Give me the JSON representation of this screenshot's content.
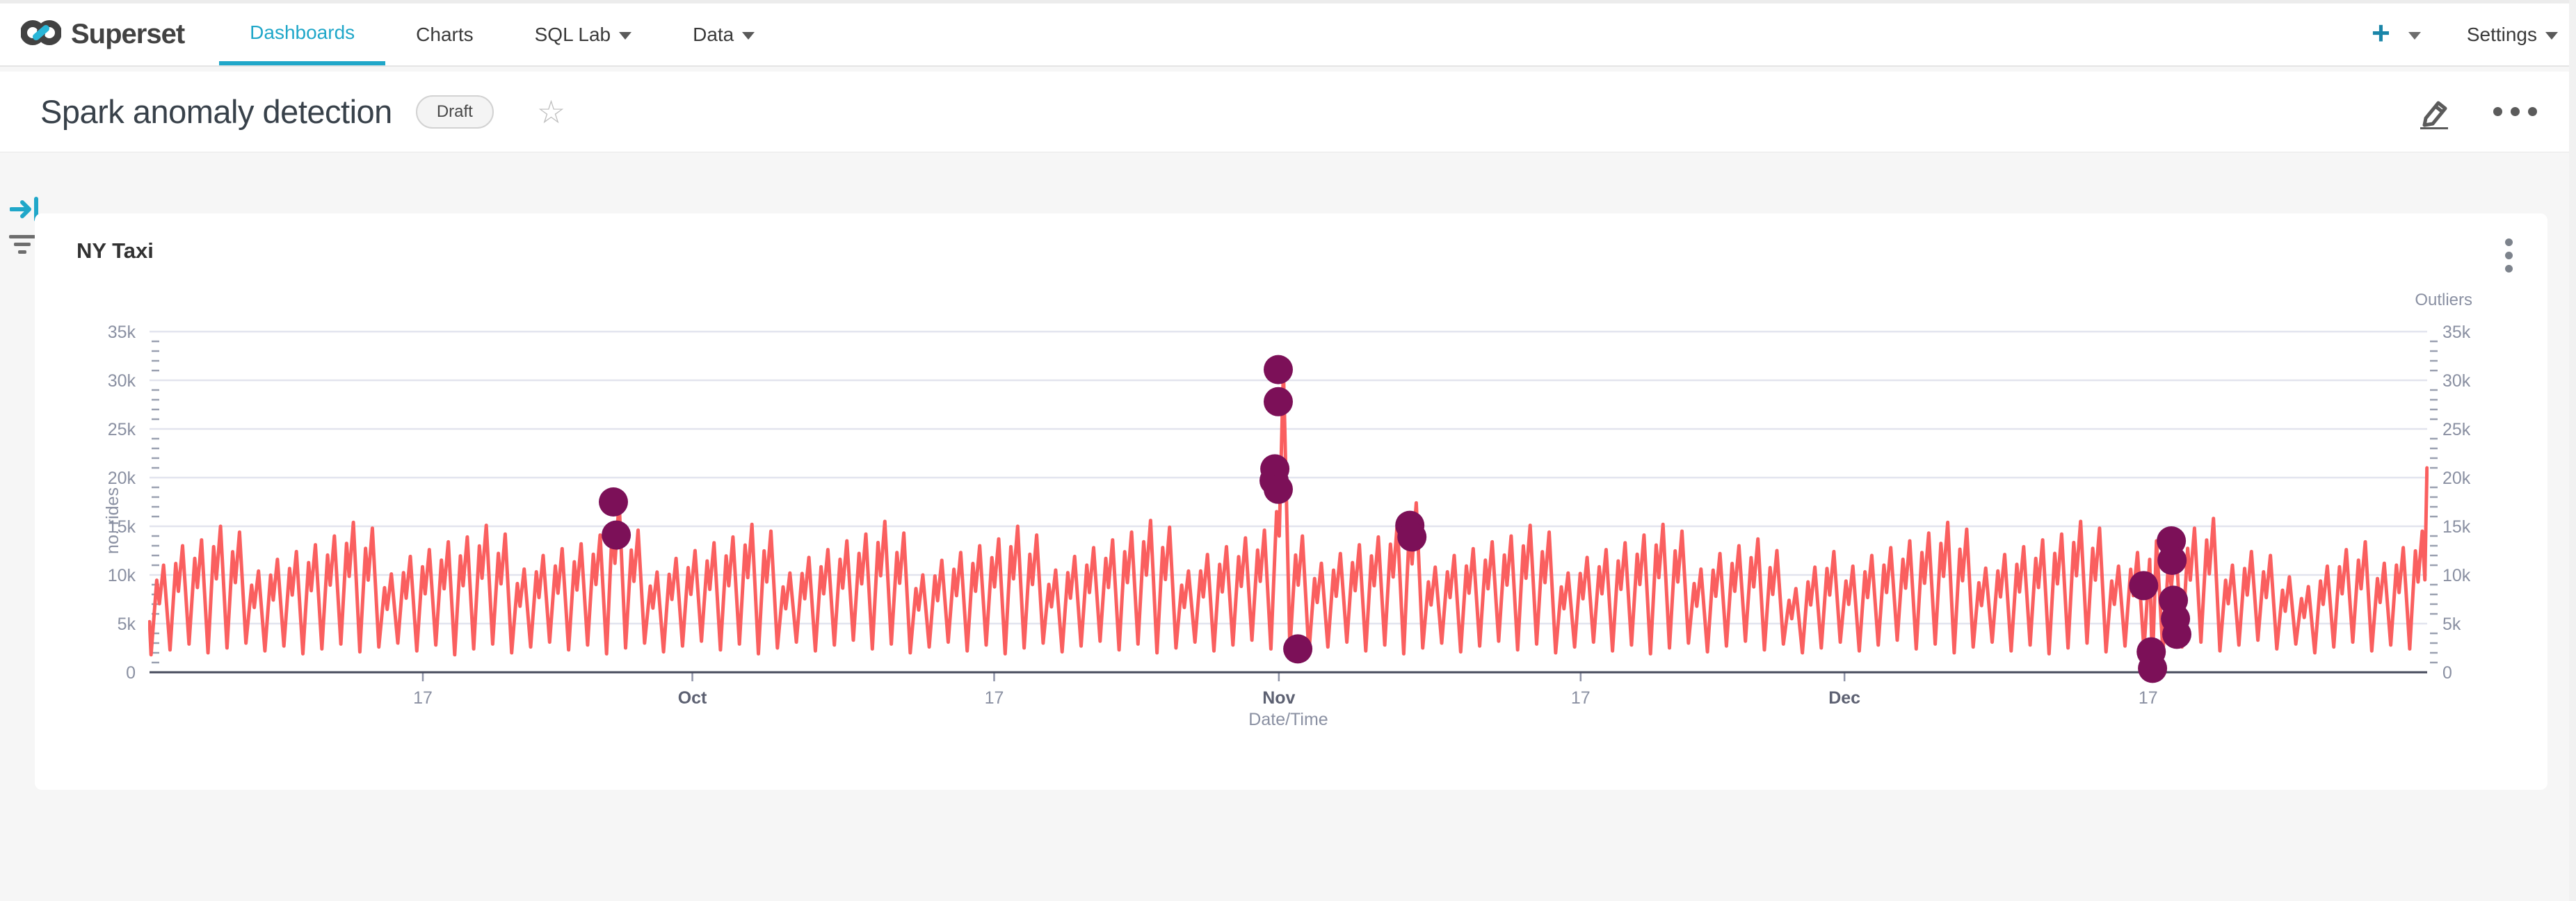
{
  "nav": {
    "brand": "Superset",
    "items": [
      {
        "label": "Dashboards",
        "active": true
      },
      {
        "label": "Charts",
        "active": false
      },
      {
        "label": "SQL Lab",
        "active": false,
        "caret": true
      },
      {
        "label": "Data",
        "active": false,
        "caret": true
      }
    ],
    "plus_label": "+",
    "settings_label": "Settings"
  },
  "header": {
    "title": "Spark anomaly detection",
    "status_badge": "Draft",
    "favorite_icon": "star-outline",
    "actions": [
      "edit",
      "more"
    ]
  },
  "chart_card": {
    "title": "NY Taxi",
    "menu_icon": "kebab-vertical"
  },
  "colors": {
    "accent": "#20a7c9",
    "line": "#fa5f5f",
    "outlier": "#7c1058",
    "grid": "#e2e4ee",
    "axis": "#474b5c",
    "tick_label": "#8a90a2",
    "month_label": "#5d6172"
  },
  "chart_data": {
    "type": "line",
    "title": "NY Taxi",
    "xlabel": "Date/Time",
    "ylabel_left": "no. rides",
    "ylabel_right": "Outliers",
    "value_unit": "thousands of rides",
    "ylim_k": [
      0,
      35
    ],
    "ytick_step_k": 5,
    "ytick_labels": [
      "0",
      "5k",
      "10k",
      "15k",
      "20k",
      "25k",
      "30k",
      "35k"
    ],
    "x_domain_days": [
      0,
      120
    ],
    "xticks": [
      {
        "day": 14.4,
        "label": "17",
        "strong": false
      },
      {
        "day": 28.6,
        "label": "Oct",
        "strong": true
      },
      {
        "day": 44.5,
        "label": "17",
        "strong": false
      },
      {
        "day": 59.5,
        "label": "Nov",
        "strong": true
      },
      {
        "day": 75.4,
        "label": "17",
        "strong": false
      },
      {
        "day": 89.3,
        "label": "Dec",
        "strong": true
      },
      {
        "day": 105.3,
        "label": "17",
        "strong": false
      }
    ],
    "grid": true,
    "legend_position": "none",
    "series": [
      {
        "name": "rides",
        "type": "line",
        "note": "each day entry is [peak_k, trough_k, optional mid_rise_k, optional midday_dip_k]",
        "lead_point": [
          0.0,
          5.2
        ],
        "days": [
          [
            11.0,
            1.8
          ],
          [
            13.0,
            2.3
          ],
          [
            13.6,
            2.9
          ],
          [
            15.0,
            2.0
          ],
          [
            14.4,
            2.5
          ],
          [
            10.4,
            3.0
          ],
          [
            11.6,
            2.2
          ],
          [
            12.4,
            2.7
          ],
          [
            13.1,
            1.9
          ],
          [
            14.0,
            2.4
          ],
          [
            15.4,
            2.9
          ],
          [
            14.8,
            2.1
          ],
          [
            10.1,
            2.6
          ],
          [
            11.9,
            3.0
          ],
          [
            12.6,
            2.2
          ],
          [
            13.4,
            2.8
          ],
          [
            13.9,
            1.8
          ],
          [
            15.1,
            2.4
          ],
          [
            14.2,
            2.9
          ],
          [
            10.6,
            2.0
          ],
          [
            12.0,
            2.6
          ],
          [
            12.7,
            3.1
          ],
          [
            13.2,
            2.3
          ],
          [
            14.1,
            2.8
          ],
          [
            17.5,
            1.9
          ],
          [
            14.6,
            2.5
          ],
          [
            10.3,
            3.0
          ],
          [
            11.7,
            2.1
          ],
          [
            12.5,
            2.7
          ],
          [
            13.3,
            3.2
          ],
          [
            13.9,
            2.3
          ],
          [
            15.2,
            2.9
          ],
          [
            14.5,
            1.9
          ],
          [
            10.2,
            2.5
          ],
          [
            11.8,
            3.1
          ],
          [
            12.6,
            2.2
          ],
          [
            13.5,
            2.8
          ],
          [
            14.2,
            3.3
          ],
          [
            15.5,
            2.4
          ],
          [
            14.3,
            2.9
          ],
          [
            10.0,
            2.0
          ],
          [
            11.5,
            2.6
          ],
          [
            12.3,
            3.1
          ],
          [
            13.0,
            2.2
          ],
          [
            13.7,
            2.8
          ],
          [
            15.0,
            1.9
          ],
          [
            14.1,
            2.5
          ],
          [
            10.5,
            3.0
          ],
          [
            11.9,
            2.1
          ],
          [
            12.8,
            2.7
          ],
          [
            13.6,
            3.2
          ],
          [
            14.4,
            2.3
          ],
          [
            15.6,
            2.9
          ],
          [
            14.9,
            2.0
          ],
          [
            10.4,
            2.5
          ],
          [
            12.1,
            3.1
          ],
          [
            12.9,
            2.2
          ],
          [
            13.8,
            2.8
          ],
          [
            14.6,
            3.3
          ],
          [
            31.2,
            2.4,
            16.5,
            14.0
          ],
          [
            14.0,
            2.4
          ],
          [
            11.2,
            2.0
          ],
          [
            12.2,
            2.6
          ],
          [
            13.1,
            3.1
          ],
          [
            13.9,
            2.2
          ],
          [
            15.3,
            2.8
          ],
          [
            17.4,
            1.9
          ],
          [
            10.8,
            2.5
          ],
          [
            12.0,
            3.0
          ],
          [
            12.7,
            2.1
          ],
          [
            13.4,
            2.7
          ],
          [
            14.0,
            3.2
          ],
          [
            15.1,
            2.3
          ],
          [
            14.4,
            2.9
          ],
          [
            10.2,
            2.0
          ],
          [
            11.8,
            2.6
          ],
          [
            12.6,
            3.1
          ],
          [
            13.3,
            2.2
          ],
          [
            14.1,
            2.8
          ],
          [
            15.2,
            1.9
          ],
          [
            14.5,
            2.5
          ],
          [
            10.6,
            3.0
          ],
          [
            12.2,
            2.1
          ],
          [
            13.0,
            2.7
          ],
          [
            13.7,
            3.2
          ],
          [
            12.5,
            2.3
          ],
          [
            8.6,
            2.9
          ],
          [
            10.8,
            2.0
          ],
          [
            12.4,
            2.5
          ],
          [
            10.9,
            3.1
          ],
          [
            12.0,
            2.2
          ],
          [
            12.8,
            2.8
          ],
          [
            13.5,
            3.3
          ],
          [
            14.3,
            2.4
          ],
          [
            15.4,
            2.9
          ],
          [
            14.7,
            2.0
          ],
          [
            10.7,
            2.6
          ],
          [
            12.1,
            3.1
          ],
          [
            12.9,
            2.2
          ],
          [
            13.6,
            2.8
          ],
          [
            14.2,
            1.9
          ],
          [
            15.5,
            2.5
          ],
          [
            14.8,
            3.0
          ],
          [
            10.9,
            2.1
          ],
          [
            12.3,
            2.7
          ],
          [
            13.5,
            2.3,
            11.6,
            0.4
          ],
          [
            13.6,
            2.0
          ],
          [
            14.8,
            2.6
          ],
          [
            15.8,
            3.1
          ],
          [
            11.0,
            2.2
          ],
          [
            12.4,
            2.8
          ],
          [
            12.0,
            3.3
          ],
          [
            9.8,
            2.4
          ],
          [
            8.8,
            2.9
          ],
          [
            10.9,
            2.0
          ],
          [
            12.6,
            2.6
          ],
          [
            13.4,
            3.1
          ],
          [
            11.2,
            2.2
          ],
          [
            12.8,
            2.8
          ],
          [
            14.5,
            2.4
          ]
        ],
        "edge_points": [
          [
            119.88,
            9.5
          ],
          [
            119.99,
            21.0
          ]
        ]
      },
      {
        "name": "Outliers",
        "type": "scatter",
        "note": "points are [day, value_k]",
        "points": [
          [
            24.44,
            17.5
          ],
          [
            24.59,
            14.1
          ],
          [
            59.47,
            31.1
          ],
          [
            59.47,
            27.8
          ],
          [
            59.29,
            20.9
          ],
          [
            59.25,
            19.7
          ],
          [
            59.47,
            18.8
          ],
          [
            60.5,
            2.4
          ],
          [
            66.4,
            15.1
          ],
          [
            66.51,
            13.9
          ],
          [
            105.06,
            8.9
          ],
          [
            105.46,
            2.1
          ],
          [
            105.53,
            0.4
          ],
          [
            106.52,
            13.5
          ],
          [
            106.56,
            11.5
          ],
          [
            106.63,
            7.4
          ],
          [
            106.74,
            5.5
          ],
          [
            106.81,
            3.9
          ]
        ]
      }
    ]
  }
}
